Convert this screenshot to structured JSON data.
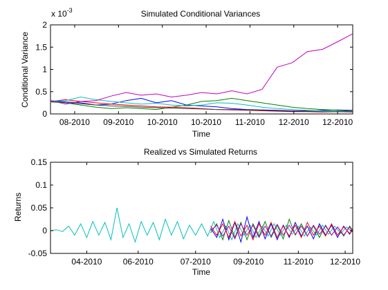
{
  "chart_data": [
    {
      "type": "line",
      "title": "Simulated Conditional Variances",
      "xlabel": "Time",
      "ylabel": "Conditional Variance",
      "y_multiplier_label": "x 10",
      "y_multiplier_exponent": "-3",
      "x_tick_labels": [
        "08-2010",
        "09-2010",
        "10-2010",
        "10-2010",
        "11-2010",
        "12-2010",
        "12-2010"
      ],
      "x_ticks": [
        0.08,
        0.225,
        0.37,
        0.515,
        0.66,
        0.805,
        0.95
      ],
      "y_tick_labels": [
        "0",
        "0.5",
        "1",
        "1.5",
        "2"
      ],
      "y_ticks": [
        0,
        0.5,
        1,
        1.5,
        2
      ],
      "xlim": [
        0,
        1
      ],
      "ylim": [
        0,
        2
      ],
      "grid": false,
      "legend": "none",
      "series": [
        {
          "color": "#0000ff",
          "x": [
            0,
            0.05,
            0.1,
            0.15,
            0.2,
            0.25,
            0.3,
            0.35,
            0.4,
            0.45,
            0.5,
            0.55,
            0.6,
            0.65,
            0.7,
            0.75,
            0.8,
            0.85,
            0.9,
            0.95,
            1.0
          ],
          "values": [
            0.3,
            0.27,
            0.25,
            0.2,
            0.22,
            0.3,
            0.35,
            0.25,
            0.3,
            0.2,
            0.18,
            0.16,
            0.12,
            0.1,
            0.09,
            0.08,
            0.07,
            0.07,
            0.08,
            0.09,
            0.08
          ]
        },
        {
          "color": "#008000",
          "x": [
            0,
            0.05,
            0.1,
            0.15,
            0.2,
            0.25,
            0.3,
            0.35,
            0.4,
            0.45,
            0.5,
            0.55,
            0.6,
            0.65,
            0.7,
            0.75,
            0.8,
            0.85,
            0.9,
            0.95,
            1.0
          ],
          "values": [
            0.28,
            0.25,
            0.2,
            0.15,
            0.12,
            0.14,
            0.12,
            0.1,
            0.15,
            0.2,
            0.28,
            0.3,
            0.35,
            0.3,
            0.25,
            0.2,
            0.15,
            0.12,
            0.1,
            0.08,
            0.06
          ]
        },
        {
          "color": "#ff0000",
          "x": [
            0,
            0.05,
            0.1,
            0.15,
            0.2,
            0.25,
            0.3,
            0.35,
            0.4,
            0.45,
            0.5,
            0.55,
            0.6,
            0.65,
            0.7,
            0.75,
            0.8,
            0.85,
            0.9,
            0.95,
            1.0
          ],
          "values": [
            0.28,
            0.32,
            0.28,
            0.25,
            0.22,
            0.2,
            0.18,
            0.16,
            0.15,
            0.14,
            0.12,
            0.1,
            0.09,
            0.08,
            0.07,
            0.06,
            0.05,
            0.05,
            0.04,
            0.05,
            0.04
          ]
        },
        {
          "color": "#00bfbf",
          "x": [
            0,
            0.05,
            0.1,
            0.15,
            0.2,
            0.25,
            0.3,
            0.35,
            0.4,
            0.45,
            0.5,
            0.55,
            0.6,
            0.65,
            0.7,
            0.75,
            0.8,
            0.85,
            0.9,
            0.95,
            1.0
          ],
          "values": [
            0.29,
            0.3,
            0.38,
            0.32,
            0.28,
            0.25,
            0.22,
            0.24,
            0.2,
            0.18,
            0.2,
            0.25,
            0.24,
            0.2,
            0.15,
            0.12,
            0.1,
            0.08,
            0.07,
            0.06,
            0.05
          ]
        },
        {
          "color": "#bf00bf",
          "x": [
            0,
            0.05,
            0.1,
            0.15,
            0.2,
            0.25,
            0.3,
            0.35,
            0.4,
            0.45,
            0.5,
            0.55,
            0.6,
            0.65,
            0.7,
            0.75,
            0.8,
            0.85,
            0.9,
            0.95,
            1.0
          ],
          "values": [
            0.3,
            0.22,
            0.28,
            0.3,
            0.4,
            0.48,
            0.42,
            0.45,
            0.38,
            0.42,
            0.48,
            0.45,
            0.52,
            0.45,
            0.55,
            1.05,
            1.15,
            1.4,
            1.45,
            1.62,
            1.8
          ]
        },
        {
          "color": "#404040",
          "x": [
            0,
            0.05,
            0.1,
            0.15,
            0.2,
            0.25,
            0.3,
            0.35,
            0.4,
            0.45,
            0.5,
            0.55,
            0.6,
            0.65,
            0.7,
            0.75,
            0.8,
            0.85,
            0.9,
            0.95,
            1.0
          ],
          "values": [
            0.27,
            0.25,
            0.23,
            0.2,
            0.18,
            0.17,
            0.15,
            0.14,
            0.13,
            0.12,
            0.11,
            0.1,
            0.1,
            0.09,
            0.08,
            0.07,
            0.06,
            0.06,
            0.05,
            0.05,
            0.05
          ]
        }
      ]
    },
    {
      "type": "line",
      "title": "Realized vs Simulated Returns",
      "xlabel": "Time",
      "ylabel": "Returns",
      "x_tick_labels": [
        "04-2010",
        "06-2010",
        "07-2010",
        "09-2010",
        "11-2010",
        "12-2010"
      ],
      "x_ticks": [
        0.12,
        0.29,
        0.48,
        0.655,
        0.82,
        0.975
      ],
      "y_tick_labels": [
        "-0.05",
        "0",
        "0.05",
        "0.1",
        "0.15"
      ],
      "y_ticks": [
        -0.05,
        0,
        0.05,
        0.1,
        0.15
      ],
      "xlim": [
        0,
        1
      ],
      "ylim": [
        -0.05,
        0.15
      ],
      "grid": false,
      "legend": "none",
      "series": [
        {
          "color": "#00bfbf",
          "x": [
            0,
            0.02,
            0.04,
            0.06,
            0.08,
            0.1,
            0.12,
            0.14,
            0.16,
            0.18,
            0.2,
            0.22,
            0.24,
            0.26,
            0.28,
            0.3,
            0.32,
            0.34,
            0.36,
            0.38,
            0.4,
            0.42,
            0.44,
            0.46,
            0.48,
            0.5,
            0.52,
            0.54,
            0.56,
            0.58,
            0.6,
            0.62,
            0.64,
            0.66,
            0.68,
            0.7,
            0.72,
            0.74,
            0.76,
            0.78,
            0.8,
            0.82,
            0.84,
            0.86,
            0.88,
            0.9,
            0.92,
            0.94,
            0.96,
            0.98,
            1.0
          ],
          "values": [
            0.0,
            0.002,
            -0.002,
            0.01,
            -0.01,
            0.015,
            -0.015,
            0.02,
            -0.01,
            0.018,
            -0.02,
            0.05,
            -0.015,
            0.015,
            -0.025,
            0.02,
            -0.01,
            0.018,
            -0.02,
            0.025,
            -0.01,
            0.02,
            -0.018,
            0.012,
            -0.01,
            0.015,
            -0.012,
            0.02,
            -0.015,
            0.01,
            -0.02,
            0.015,
            -0.01,
            0.012,
            -0.015,
            0.01,
            -0.012,
            0.015,
            -0.01,
            0.012,
            -0.008,
            0.01,
            -0.012,
            0.008,
            -0.01,
            0.012,
            -0.008,
            0.01,
            -0.006,
            0.008,
            -0.005
          ]
        },
        {
          "color": "#0000ff",
          "x": [
            0.53,
            0.55,
            0.57,
            0.59,
            0.61,
            0.63,
            0.65,
            0.67,
            0.69,
            0.71,
            0.73,
            0.75,
            0.77,
            0.79,
            0.81,
            0.83,
            0.85,
            0.87,
            0.89,
            0.91,
            0.93,
            0.95,
            0.97,
            0.99,
            1.0
          ],
          "values": [
            0.005,
            -0.015,
            0.025,
            -0.02,
            0.018,
            -0.025,
            0.03,
            -0.015,
            0.02,
            -0.018,
            0.015,
            -0.02,
            0.012,
            -0.015,
            0.018,
            -0.012,
            0.01,
            -0.018,
            0.015,
            -0.01,
            0.012,
            -0.015,
            0.01,
            -0.008,
            0.005
          ]
        },
        {
          "color": "#008000",
          "x": [
            0.53,
            0.55,
            0.57,
            0.59,
            0.61,
            0.63,
            0.65,
            0.67,
            0.69,
            0.71,
            0.73,
            0.75,
            0.77,
            0.79,
            0.81,
            0.83,
            0.85,
            0.87,
            0.89,
            0.91,
            0.93,
            0.95,
            0.97,
            0.99,
            1.0
          ],
          "values": [
            -0.005,
            0.015,
            -0.02,
            0.022,
            -0.015,
            0.018,
            -0.02,
            0.015,
            -0.012,
            0.02,
            -0.015,
            0.012,
            -0.018,
            0.025,
            -0.01,
            0.015,
            -0.012,
            0.01,
            -0.015,
            0.012,
            -0.01,
            0.008,
            -0.012,
            0.01,
            0.0
          ]
        },
        {
          "color": "#ff0000",
          "x": [
            0.53,
            0.55,
            0.57,
            0.59,
            0.61,
            0.63,
            0.65,
            0.67,
            0.69,
            0.71,
            0.73,
            0.75,
            0.77,
            0.79,
            0.81,
            0.83,
            0.85,
            0.87,
            0.89,
            0.91,
            0.93,
            0.95,
            0.97,
            0.99,
            1.0
          ],
          "values": [
            0.01,
            -0.01,
            0.015,
            -0.015,
            0.02,
            -0.012,
            0.012,
            -0.02,
            0.015,
            -0.01,
            0.018,
            -0.015,
            0.01,
            -0.012,
            0.012,
            -0.015,
            0.018,
            -0.01,
            0.01,
            -0.012,
            0.015,
            -0.01,
            0.008,
            -0.006,
            0.004
          ]
        },
        {
          "color": "#bf00bf",
          "x": [
            0.53,
            0.55,
            0.57,
            0.59,
            0.61,
            0.63,
            0.65,
            0.67,
            0.69,
            0.71,
            0.73,
            0.75,
            0.77,
            0.79,
            0.81,
            0.83,
            0.85,
            0.87,
            0.89,
            0.91,
            0.93,
            0.95,
            0.97,
            0.99,
            1.0
          ],
          "values": [
            0.0,
            0.012,
            -0.012,
            0.01,
            -0.018,
            0.015,
            -0.01,
            0.012,
            -0.015,
            0.01,
            -0.012,
            0.014,
            -0.01,
            0.012,
            -0.008,
            0.01,
            -0.012,
            0.012,
            -0.008,
            0.01,
            -0.01,
            0.008,
            -0.01,
            0.008,
            -0.004
          ]
        }
      ]
    }
  ]
}
